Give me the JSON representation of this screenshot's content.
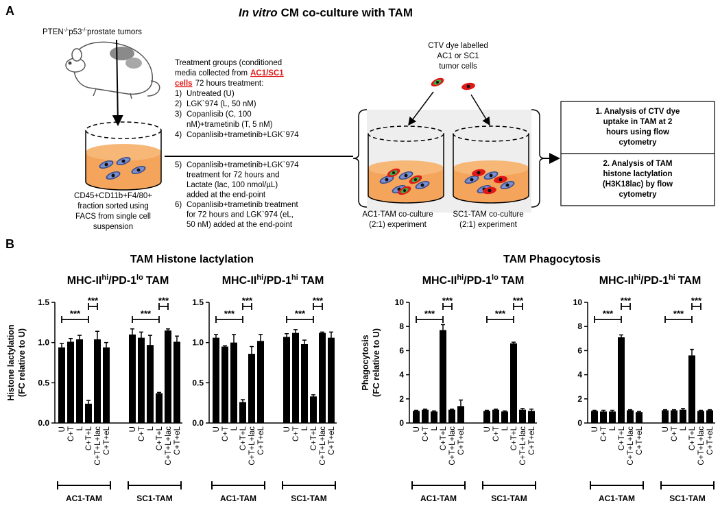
{
  "panel_a": {
    "letter": "A",
    "title": [
      "In vitro",
      "CM co-culture with TAM"
    ],
    "tumor_label": [
      "PTEN",
      "-/-",
      "p53",
      "-/-",
      "prostate tumors"
    ],
    "sorted_fraction": [
      "CD45+CD11b+F4/80+",
      "fraction sorted using",
      "FACS from single cell",
      "suspension"
    ],
    "treatment": {
      "intro": [
        "Treatment groups (conditioned",
        "media collected from",
        "AC1/SC1",
        "cells",
        "72 hours treatment:"
      ],
      "items": [
        {
          "number": "1)",
          "lines": [
            "Untreated (U)"
          ]
        },
        {
          "number": "2)",
          "lines": [
            "LGK`974 (L, 50 nM)"
          ]
        },
        {
          "number": "3)",
          "lines": [
            "Copanlisib (C, 100",
            "nM)+trametinib (T, 5 nM)"
          ]
        },
        {
          "number": "4)",
          "lines": [
            "Copanlisib+trametinib+LGK`974"
          ]
        },
        {
          "number": "5)",
          "lines": [
            "Copanlisib+trametinib+LGK`974",
            "treatment for 72 hours and",
            "Lactate (lac, 100 nmol/µL)",
            "added at the end-point"
          ]
        },
        {
          "number": "6)",
          "lines": [
            "Copanlisib+trametinib treatment",
            "for 72 hours and LGK`974 (eL,",
            "50 nM) added at the end-point"
          ]
        }
      ]
    },
    "dye_label": [
      "CTV dye labelled",
      "AC1 or SC1",
      "tumor cells"
    ],
    "coculture_labels": [
      [
        "AC1-TAM co-culture",
        "(2:1) experiment"
      ],
      [
        "SC1-TAM co-culture",
        "(2:1) experiment"
      ]
    ],
    "analysis": [
      [
        "1. Analysis of CTV dye",
        "uptake in TAM at 2",
        "hours using flow",
        "cytometry"
      ],
      [
        "2. Analysis of TAM",
        "histone lactylation",
        "(H3K18lac) by flow",
        "cytometry"
      ]
    ]
  },
  "panel_b": {
    "letter": "B",
    "group_titles": [
      "TAM Histone lactylation",
      "TAM Phagocytosis"
    ]
  },
  "chart_data": [
    {
      "type": "bar",
      "title": [
        "MHC-II",
        "hi",
        "/PD-1",
        "lo",
        "TAM"
      ],
      "y_label": [
        "Histone lactylation",
        "(FC relative to U)"
      ],
      "categories": [
        "U",
        "C+T",
        "L",
        "C+T+L",
        "C+T+L+lac",
        "C+T+eL"
      ],
      "series": [
        {
          "name": "AC1-TAM",
          "color": "#000000",
          "values": [
            0.94,
            1.01,
            1.04,
            0.24,
            1.04,
            0.94
          ],
          "errors": [
            0.05,
            0.04,
            0.05,
            0.04,
            0.1,
            0.06
          ]
        },
        {
          "name": "SC1-TAM",
          "color": "#000000",
          "values": [
            1.1,
            1.06,
            0.97,
            0.37,
            1.15,
            1.01
          ],
          "errors": [
            0.07,
            0.07,
            0.12,
            0.01,
            0.02,
            0.07
          ]
        }
      ],
      "annotations": [
        "***",
        "***",
        "***",
        "***"
      ],
      "ylim": [
        0,
        1.5
      ],
      "yticks": [
        {
          "value": 0,
          "label": "0.0"
        },
        0.5,
        {
          "value": 1,
          "label": "1.0"
        },
        1.5
      ]
    },
    {
      "type": "bar",
      "title": [
        "MHC-II",
        "hi",
        "/PD-1",
        "hi",
        "TAM"
      ],
      "categories": [
        "U",
        "C+T",
        "L",
        "C+T+L",
        "C+T+L+lac",
        "C+T+eL"
      ],
      "series": [
        {
          "name": "AC1-TAM",
          "color": "#000000",
          "values": [
            1.06,
            0.95,
            1.0,
            0.26,
            0.86,
            1.02
          ],
          "errors": [
            0.04,
            0.01,
            0.1,
            0.03,
            0.09,
            0.08
          ]
        },
        {
          "name": "SC1-TAM",
          "color": "#000000",
          "values": [
            1.07,
            1.12,
            0.98,
            0.33,
            1.12,
            1.06
          ],
          "errors": [
            0.04,
            0.04,
            0.05,
            0.02,
            0.01,
            0.07
          ]
        }
      ],
      "annotations": [
        "***",
        "***",
        "***",
        "***"
      ],
      "ylim": [
        0,
        1.5
      ],
      "yticks": [
        {
          "value": 0,
          "label": "0.0"
        },
        0.5,
        {
          "value": 1,
          "label": "1.0"
        },
        1.5
      ]
    },
    {
      "type": "bar",
      "title": [
        "MHC-II",
        "hi",
        "/PD-1",
        "lo",
        "TAM"
      ],
      "y_label": [
        "Phagocytosis",
        "(FC relative to U)"
      ],
      "categories": [
        "U",
        "C+T",
        "L",
        "C+T+L",
        "C+T+L+lac",
        "C+T+eL"
      ],
      "series": [
        {
          "name": "AC1-TAM",
          "color": "#000000",
          "values": [
            1.0,
            1.1,
            0.95,
            7.7,
            1.1,
            1.4
          ],
          "errors": [
            0.05,
            0.05,
            0.05,
            0.45,
            0.05,
            0.5
          ]
        },
        {
          "name": "SC1-TAM",
          "color": "#000000",
          "values": [
            1.0,
            1.1,
            0.95,
            6.6,
            1.1,
            1.0
          ],
          "errors": [
            0.05,
            0.05,
            0.05,
            0.1,
            0.1,
            0.15
          ]
        }
      ],
      "annotations": [
        "***",
        "***",
        "***",
        "***"
      ],
      "ylim": [
        0,
        10
      ],
      "yticks": [
        0,
        2,
        4,
        6,
        8,
        10
      ]
    },
    {
      "type": "bar",
      "title": [
        "MHC-II",
        "hi",
        "/PD-1",
        "hi",
        "TAM"
      ],
      "categories": [
        "U",
        "C+T",
        "L",
        "C+T+L",
        "C+T+L+lac",
        "C+T+eL"
      ],
      "series": [
        {
          "name": "AC1-TAM",
          "color": "#000000",
          "values": [
            1.0,
            0.95,
            0.95,
            7.1,
            1.05,
            0.9
          ],
          "errors": [
            0.05,
            0.1,
            0.1,
            0.2,
            0.05,
            0.05
          ]
        },
        {
          "name": "SC1-TAM",
          "color": "#000000",
          "values": [
            1.05,
            1.05,
            1.1,
            5.6,
            1.0,
            1.05
          ],
          "errors": [
            0.05,
            0.05,
            0.1,
            0.5,
            0.05,
            0.05
          ]
        }
      ],
      "annotations": [
        "***",
        "***",
        "***",
        "***"
      ],
      "ylim": [
        0,
        10
      ],
      "yticks": [
        0,
        2,
        4,
        6,
        8,
        10
      ]
    }
  ]
}
